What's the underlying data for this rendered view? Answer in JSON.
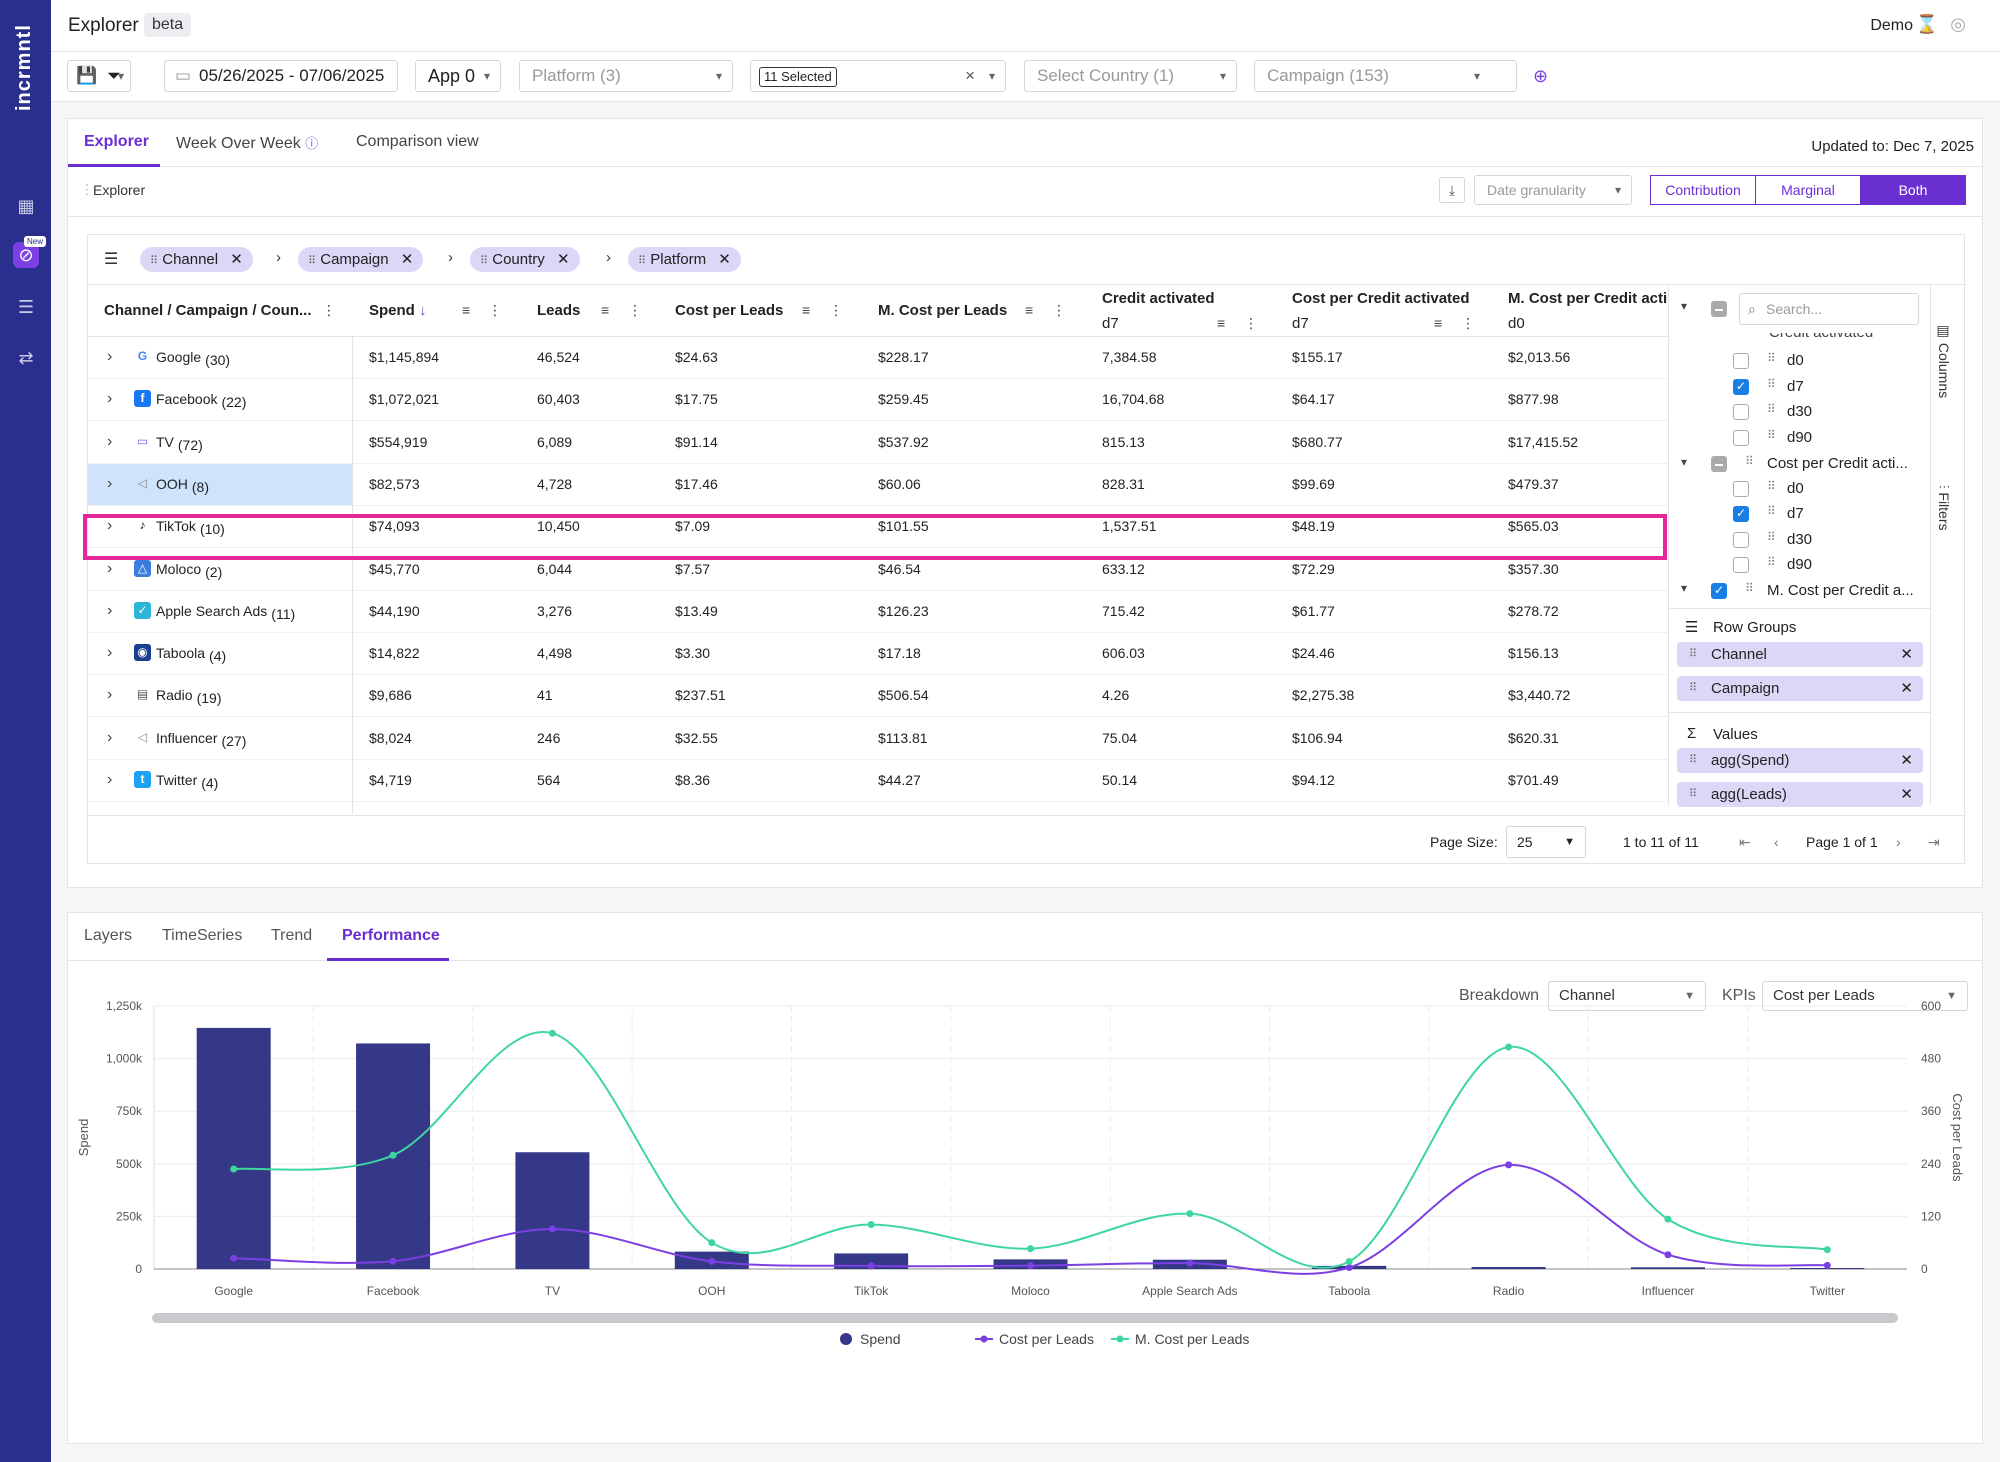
{
  "app": {
    "logo": "incrmntl",
    "title": "Explorer",
    "badge": "beta",
    "user": "Demo",
    "new_badge": "New"
  },
  "filters": {
    "date_range": "05/26/2025 - 07/06/2025",
    "app": "App 0",
    "platform": "Platform (3)",
    "selected": "11 Selected",
    "country": "Select Country (1)",
    "campaign": "Campaign (153)"
  },
  "tabs": [
    {
      "label": "Explorer"
    },
    {
      "label": "Week Over Week"
    },
    {
      "label": "Comparison view"
    }
  ],
  "updated": "Updated to: Dec 7, 2025",
  "subbar": {
    "label": "Explorer",
    "granularity": "Date granularity",
    "modes": [
      "Contribution",
      "Marginal",
      "Both"
    ]
  },
  "groups": [
    "Channel",
    "Campaign",
    "Country",
    "Platform"
  ],
  "headers": {
    "first": "Channel / Campaign / Coun...",
    "spend": "Spend",
    "leads": "Leads",
    "cpl": "Cost per Leads",
    "mcpl": "M. Cost per Leads",
    "credit": "Credit activated",
    "credit_sub": "d7",
    "cpca": "Cost per Credit activated",
    "cpca_sub": "d7",
    "mcpca": "M. Cost per Credit acti",
    "mcpca_sub": "d0"
  },
  "rows": [
    {
      "name": "Google",
      "count": "(30)",
      "spend": "$1,145,894",
      "leads": "46,524",
      "cpl": "$24.63",
      "mcpl": "$228.17",
      "credit": "7,384.58",
      "cpca": "$155.17",
      "mcpca": "$2,013.56",
      "icon": "google-icon",
      "color": "#4285f4"
    },
    {
      "name": "Facebook",
      "count": "(22)",
      "spend": "$1,072,021",
      "leads": "60,403",
      "cpl": "$17.75",
      "mcpl": "$259.45",
      "credit": "16,704.68",
      "cpca": "$64.17",
      "mcpca": "$877.98",
      "icon": "facebook-icon",
      "color": "#1877f2"
    },
    {
      "name": "TV",
      "count": "(72)",
      "spend": "$554,919",
      "leads": "6,089",
      "cpl": "$91.14",
      "mcpl": "$537.92",
      "credit": "815.13",
      "cpca": "$680.77",
      "mcpca": "$17,415.52",
      "icon": "tv-icon",
      "color": "#7b61ff"
    },
    {
      "name": "OOH",
      "count": "(8)",
      "spend": "$82,573",
      "leads": "4,728",
      "cpl": "$17.46",
      "mcpl": "$60.06",
      "credit": "828.31",
      "cpca": "$99.69",
      "mcpca": "$479.37",
      "icon": "megaphone-icon",
      "color": "#888"
    },
    {
      "name": "TikTok",
      "count": "(10)",
      "spend": "$74,093",
      "leads": "10,450",
      "cpl": "$7.09",
      "mcpl": "$101.55",
      "credit": "1,537.51",
      "cpca": "$48.19",
      "mcpca": "$565.03",
      "icon": "tiktok-icon",
      "color": "#111"
    },
    {
      "name": "Moloco",
      "count": "(2)",
      "spend": "$45,770",
      "leads": "6,044",
      "cpl": "$7.57",
      "mcpl": "$46.54",
      "credit": "633.12",
      "cpca": "$72.29",
      "mcpca": "$357.30",
      "icon": "moloco-icon",
      "color": "#3b7ddd"
    },
    {
      "name": "Apple Search Ads",
      "count": "(11)",
      "spend": "$44,190",
      "leads": "3,276",
      "cpl": "$13.49",
      "mcpl": "$126.23",
      "credit": "715.42",
      "cpca": "$61.77",
      "mcpca": "$278.72",
      "icon": "apple-search-ads-icon",
      "color": "#2ab5d9"
    },
    {
      "name": "Taboola",
      "count": "(4)",
      "spend": "$14,822",
      "leads": "4,498",
      "cpl": "$3.30",
      "mcpl": "$17.18",
      "credit": "606.03",
      "cpca": "$24.46",
      "mcpca": "$156.13",
      "icon": "taboola-icon",
      "color": "#1a3f8f"
    },
    {
      "name": "Radio",
      "count": "(19)",
      "spend": "$9,686",
      "leads": "41",
      "cpl": "$237.51",
      "mcpl": "$506.54",
      "credit": "4.26",
      "cpca": "$2,275.38",
      "mcpca": "$3,440.72",
      "icon": "radio-icon",
      "color": "#555"
    },
    {
      "name": "Influencer",
      "count": "(27)",
      "spend": "$8,024",
      "leads": "246",
      "cpl": "$32.55",
      "mcpl": "$113.81",
      "credit": "75.04",
      "cpca": "$106.94",
      "mcpca": "$620.31",
      "icon": "megaphone-icon",
      "color": "#888"
    },
    {
      "name": "Twitter",
      "count": "(4)",
      "spend": "$4,719",
      "leads": "564",
      "cpl": "$8.36",
      "mcpl": "$44.27",
      "credit": "50.14",
      "cpca": "$94.12",
      "mcpca": "$701.49",
      "icon": "twitter-icon",
      "color": "#1da1f2"
    }
  ],
  "colpanel": {
    "search_placeholder": "Search...",
    "partial_group": "Credit activated",
    "items": [
      "d0",
      "d7",
      "d30",
      "d90"
    ],
    "group2": "Cost per Credit acti...",
    "group3": "M. Cost per Credit a...",
    "row_groups_label": "Row Groups",
    "row_groups": [
      "Channel",
      "Campaign"
    ],
    "values_label": "Values",
    "values": [
      "agg(Spend)",
      "agg(Leads)"
    ],
    "side_columns": "Columns",
    "side_filters": "Filters"
  },
  "pager": {
    "page_size_label": "Page Size:",
    "page_size": "25",
    "range": "1 to 11 of 11",
    "page": "Page 1 of 1"
  },
  "chart_tabs": [
    "Layers",
    "TimeSeries",
    "Trend",
    "Performance"
  ],
  "chart_controls": {
    "breakdown_label": "Breakdown",
    "breakdown": "Channel",
    "kpis_label": "KPIs",
    "kpi": "Cost per Leads"
  },
  "chart_data": {
    "type": "bar",
    "categories": [
      "Google",
      "Facebook",
      "TV",
      "OOH",
      "TikTok",
      "Moloco",
      "Apple Search Ads",
      "Taboola",
      "Radio",
      "Influencer",
      "Twitter"
    ],
    "series": [
      {
        "name": "Spend",
        "type": "bar",
        "axis": "left",
        "color": "#353886",
        "values": [
          1145894,
          1072021,
          554919,
          82573,
          74093,
          45770,
          44190,
          14822,
          9686,
          8024,
          4719
        ]
      },
      {
        "name": "Cost per Leads",
        "type": "line",
        "axis": "right",
        "color": "#7b3fe4",
        "values": [
          24.63,
          17.75,
          91.14,
          17.46,
          7.09,
          7.57,
          13.49,
          3.3,
          237.51,
          32.55,
          8.36
        ]
      },
      {
        "name": "M. Cost per Leads",
        "type": "line",
        "axis": "right",
        "color": "#3ed6a0",
        "values": [
          228.17,
          259.45,
          537.92,
          60.06,
          101.55,
          46.54,
          126.23,
          17.18,
          506.54,
          113.81,
          44.27
        ]
      }
    ],
    "ylabel": "Spend",
    "y2label": "Cost per Leads",
    "ylim": [
      0,
      1250000
    ],
    "y2lim": [
      0,
      600
    ],
    "yticks": [
      "0",
      "250k",
      "500k",
      "750k",
      "1,000k",
      "1,250k"
    ],
    "y2ticks": [
      "0",
      "120",
      "240",
      "360",
      "480",
      "600"
    ],
    "legend": "bottom",
    "grid": true
  }
}
